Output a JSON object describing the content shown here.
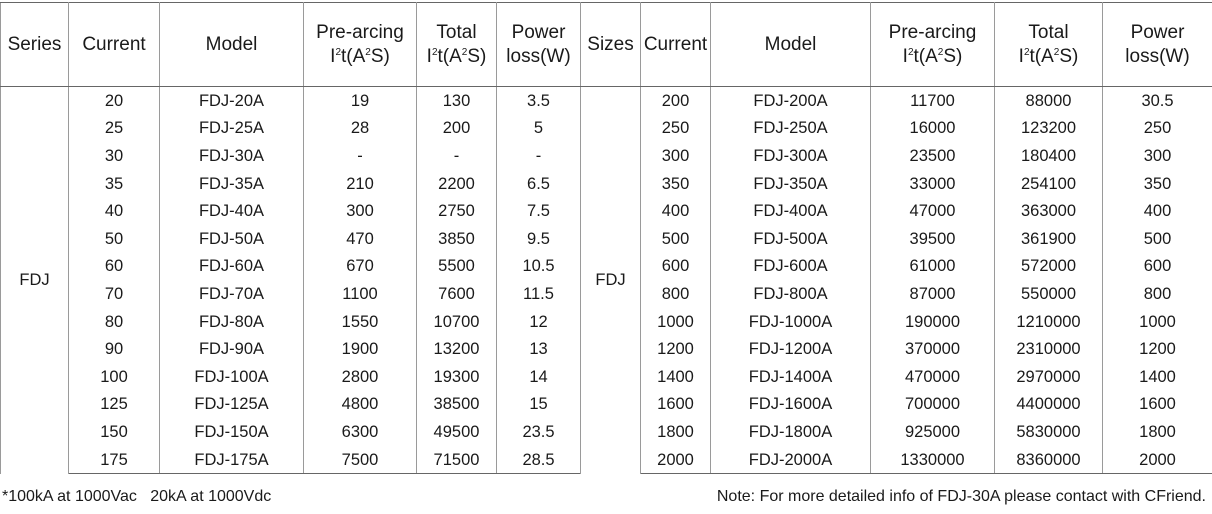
{
  "headers": {
    "series": "Series",
    "current": "Current",
    "model": "Model",
    "prearcing_l1": "Pre-arcing",
    "prearcing_l2_pre": "I",
    "prearcing_l2_sup1": "2",
    "prearcing_l2_mid": "t(A",
    "prearcing_l2_sup2": "2",
    "prearcing_l2_end": "S)",
    "total_l1": "Total",
    "total_l2_pre": "I",
    "total_l2_sup1": "2",
    "total_l2_mid": "t(A",
    "total_l2_sup2": "2",
    "total_l2_end": "S)",
    "power_l1": "Power",
    "power_l2": "loss(W)",
    "sizes": "Sizes"
  },
  "left_series": "FDJ",
  "right_series": "FDJ",
  "rows": [
    {
      "lc": "20",
      "lm": "FDJ-20A",
      "lp": "19",
      "lt": "130",
      "lw": "3.5",
      "rc": "200",
      "rm": "FDJ-200A",
      "rp": "11700",
      "rt": "88000",
      "rw": "30.5"
    },
    {
      "lc": "25",
      "lm": "FDJ-25A",
      "lp": "28",
      "lt": "200",
      "lw": "5",
      "rc": "250",
      "rm": "FDJ-250A",
      "rp": "16000",
      "rt": "123200",
      "rw": "250"
    },
    {
      "lc": "30",
      "lm": "FDJ-30A",
      "lp": "-",
      "lt": "-",
      "lw": "-",
      "rc": "300",
      "rm": "FDJ-300A",
      "rp": "23500",
      "rt": "180400",
      "rw": "300"
    },
    {
      "lc": "35",
      "lm": "FDJ-35A",
      "lp": "210",
      "lt": "2200",
      "lw": "6.5",
      "rc": "350",
      "rm": "FDJ-350A",
      "rp": "33000",
      "rt": "254100",
      "rw": "350"
    },
    {
      "lc": "40",
      "lm": "FDJ-40A",
      "lp": "300",
      "lt": "2750",
      "lw": "7.5",
      "rc": "400",
      "rm": "FDJ-400A",
      "rp": "47000",
      "rt": "363000",
      "rw": "400"
    },
    {
      "lc": "50",
      "lm": "FDJ-50A",
      "lp": "470",
      "lt": "3850",
      "lw": "9.5",
      "rc": "500",
      "rm": "FDJ-500A",
      "rp": "39500",
      "rt": "361900",
      "rw": "500"
    },
    {
      "lc": "60",
      "lm": "FDJ-60A",
      "lp": "670",
      "lt": "5500",
      "lw": "10.5",
      "rc": "600",
      "rm": "FDJ-600A",
      "rp": "61000",
      "rt": "572000",
      "rw": "600"
    },
    {
      "lc": "70",
      "lm": "FDJ-70A",
      "lp": "1100",
      "lt": "7600",
      "lw": "11.5",
      "rc": "800",
      "rm": "FDJ-800A",
      "rp": "87000",
      "rt": "550000",
      "rw": "800"
    },
    {
      "lc": "80",
      "lm": "FDJ-80A",
      "lp": "1550",
      "lt": "10700",
      "lw": "12",
      "rc": "1000",
      "rm": "FDJ-1000A",
      "rp": "190000",
      "rt": "1210000",
      "rw": "1000"
    },
    {
      "lc": "90",
      "lm": "FDJ-90A",
      "lp": "1900",
      "lt": "13200",
      "lw": "13",
      "rc": "1200",
      "rm": "FDJ-1200A",
      "rp": "370000",
      "rt": "2310000",
      "rw": "1200"
    },
    {
      "lc": "100",
      "lm": "FDJ-100A",
      "lp": "2800",
      "lt": "19300",
      "lw": "14",
      "rc": "1400",
      "rm": "FDJ-1400A",
      "rp": "470000",
      "rt": "2970000",
      "rw": "1400"
    },
    {
      "lc": "125",
      "lm": "FDJ-125A",
      "lp": "4800",
      "lt": "38500",
      "lw": "15",
      "rc": "1600",
      "rm": "FDJ-1600A",
      "rp": "700000",
      "rt": "4400000",
      "rw": "1600"
    },
    {
      "lc": "150",
      "lm": "FDJ-150A",
      "lp": "6300",
      "lt": "49500",
      "lw": "23.5",
      "rc": "1800",
      "rm": "FDJ-1800A",
      "rp": "925000",
      "rt": "5830000",
      "rw": "1800"
    },
    {
      "lc": "175",
      "lm": "FDJ-175A",
      "lp": "7500",
      "lt": "71500",
      "lw": "28.5",
      "rc": "2000",
      "rm": "FDJ-2000A",
      "rp": "1330000",
      "rt": "8360000",
      "rw": "2000"
    }
  ],
  "footer": {
    "left": "*100kA at 1000Vac   20kA at 1000Vdc",
    "right": "Note: For more detailed info of FDJ-30A please contact with CFriend."
  }
}
